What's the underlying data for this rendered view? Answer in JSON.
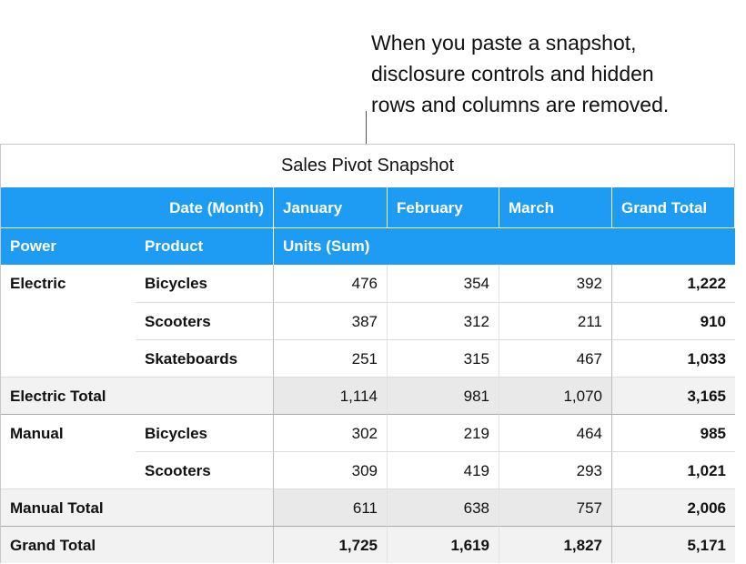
{
  "callout": {
    "lines": [
      "When you paste a snapshot,",
      "disclosure controls and hidden",
      "rows and columns are removed."
    ]
  },
  "table": {
    "title": "Sales Pivot Snapshot",
    "header_rows": [
      [
        null,
        "Date (Month)",
        "January",
        "February",
        "March",
        "Grand Total"
      ],
      [
        "Power",
        "Product",
        "Units (Sum)",
        null,
        null,
        null
      ]
    ],
    "rows": [
      [
        "Electric",
        "Bicycles",
        "476",
        "354",
        "392",
        "1,222"
      ],
      [
        null,
        "Scooters",
        "387",
        "312",
        "211",
        "910"
      ],
      [
        null,
        "Skateboards",
        "251",
        "315",
        "467",
        "1,033"
      ],
      [
        "Electric Total",
        null,
        "1,114",
        "981",
        "1,070",
        "3,165"
      ],
      [
        "Manual",
        "Bicycles",
        "302",
        "219",
        "464",
        "985"
      ],
      [
        null,
        "Scooters",
        "309",
        "419",
        "293",
        "1,021"
      ],
      [
        "Manual Total",
        null,
        "611",
        "638",
        "757",
        "2,006"
      ],
      [
        "Grand Total",
        null,
        "1,725",
        "1,619",
        "1,827",
        "5,171"
      ]
    ]
  }
}
